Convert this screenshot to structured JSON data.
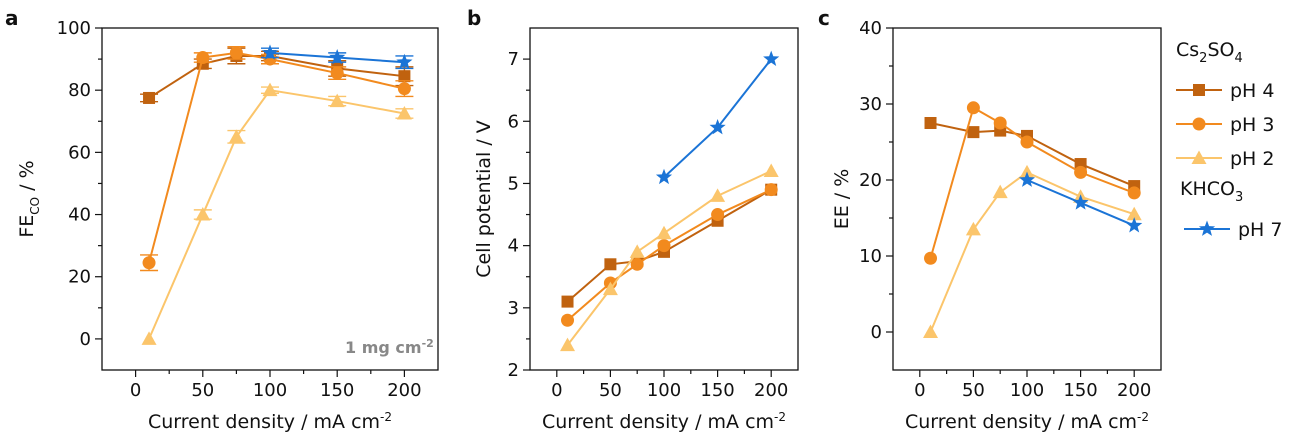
{
  "colors": {
    "pH 4": "#c0620f",
    "pH 3": "#f28a1e",
    "pH 2": "#fbc56b",
    "pH 7": "#1b74d6",
    "axis": "#111111"
  },
  "chart_data": [
    {
      "panel": "a",
      "type": "line",
      "xlabel": "Current density / mA cm",
      "xlabel_sup": "-2",
      "ylabel": "FE",
      "ylabel_sub": "CO",
      "ylabel_suffix": " / %",
      "xlim": [
        -25,
        225
      ],
      "ylim": [
        -10,
        100
      ],
      "xticks": [
        0,
        50,
        100,
        150,
        200
      ],
      "yticks": [
        0,
        20,
        40,
        60,
        80,
        100
      ],
      "annotation": "1 mg cm",
      "annotation_sup": "-2",
      "series": [
        {
          "key": "pH 4",
          "marker": "square",
          "x": [
            10,
            50,
            75,
            100,
            150,
            200
          ],
          "y": [
            77.5,
            88.5,
            91,
            91,
            87,
            84.5
          ],
          "err": [
            1.2,
            1.5,
            2.5,
            1.5,
            2.5,
            3
          ]
        },
        {
          "key": "pH 3",
          "marker": "circle",
          "x": [
            10,
            50,
            75,
            100,
            150,
            200
          ],
          "y": [
            24.5,
            90.5,
            92,
            90,
            85.5,
            80.5
          ],
          "err": [
            2.5,
            1.5,
            2,
            1.5,
            2,
            2.5
          ]
        },
        {
          "key": "pH 2",
          "marker": "triangle",
          "x": [
            10,
            50,
            75,
            100,
            150,
            200
          ],
          "y": [
            0,
            40,
            65,
            80,
            76.5,
            72.5
          ],
          "err": [
            0,
            1.5,
            2,
            1,
            1.5,
            1.5
          ]
        },
        {
          "key": "pH 7",
          "marker": "star",
          "x": [
            100,
            150,
            200
          ],
          "y": [
            92,
            90.5,
            89
          ],
          "err": [
            1.5,
            1.5,
            2
          ]
        }
      ]
    },
    {
      "panel": "b",
      "type": "line",
      "xlabel": "Current density / mA cm",
      "xlabel_sup": "-2",
      "ylabel": "Cell potential / V",
      "xlim": [
        -25,
        225
      ],
      "ylim": [
        2,
        7.5
      ],
      "xticks": [
        0,
        50,
        100,
        150,
        200
      ],
      "yticks": [
        2,
        3,
        4,
        5,
        6,
        7
      ],
      "series": [
        {
          "key": "pH 4",
          "marker": "square",
          "x": [
            10,
            50,
            75,
            100,
            150,
            200
          ],
          "y": [
            3.1,
            3.7,
            3.75,
            3.9,
            4.4,
            4.9
          ]
        },
        {
          "key": "pH 3",
          "marker": "circle",
          "x": [
            10,
            50,
            75,
            100,
            150,
            200
          ],
          "y": [
            2.8,
            3.4,
            3.7,
            4.0,
            4.5,
            4.9
          ]
        },
        {
          "key": "pH 2",
          "marker": "triangle",
          "x": [
            10,
            50,
            75,
            100,
            150,
            200
          ],
          "y": [
            2.4,
            3.3,
            3.9,
            4.2,
            4.8,
            5.2
          ]
        },
        {
          "key": "pH 7",
          "marker": "star",
          "x": [
            100,
            150,
            200
          ],
          "y": [
            5.1,
            5.9,
            7.0
          ]
        }
      ]
    },
    {
      "panel": "c",
      "type": "line",
      "xlabel": "Current density / mA cm",
      "xlabel_sup": "-2",
      "ylabel": "EE / %",
      "xlim": [
        -25,
        225
      ],
      "ylim": [
        -5,
        40
      ],
      "xticks": [
        0,
        50,
        100,
        150,
        200
      ],
      "yticks": [
        0,
        10,
        20,
        30,
        40
      ],
      "series": [
        {
          "key": "pH 4",
          "marker": "square",
          "x": [
            10,
            50,
            75,
            100,
            150,
            200
          ],
          "y": [
            27.5,
            26.3,
            26.5,
            25.8,
            22.1,
            19.2
          ]
        },
        {
          "key": "pH 3",
          "marker": "circle",
          "x": [
            10,
            50,
            75,
            100,
            150,
            200
          ],
          "y": [
            9.7,
            29.5,
            27.5,
            25.0,
            21.0,
            18.3
          ]
        },
        {
          "key": "pH 2",
          "marker": "triangle",
          "x": [
            10,
            50,
            75,
            100,
            150,
            200
          ],
          "y": [
            0,
            13.5,
            18.4,
            21.0,
            17.8,
            15.5
          ]
        },
        {
          "key": "pH 7",
          "marker": "star",
          "x": [
            100,
            150,
            200
          ],
          "y": [
            20.0,
            17.0,
            14.0
          ]
        }
      ]
    }
  ],
  "legend": {
    "group1_title": "Cs",
    "group1_title_sub1": "2",
    "group1_title_mid": "SO",
    "group1_title_sub2": "4",
    "group2_title": "KHCO",
    "group2_title_sub": "3",
    "entries": [
      {
        "key": "pH 4",
        "label": "pH 4",
        "marker": "square"
      },
      {
        "key": "pH 3",
        "label": "pH 3",
        "marker": "circle"
      },
      {
        "key": "pH 2",
        "label": "pH 2",
        "marker": "triangle"
      },
      {
        "key": "pH 7",
        "label": "pH 7",
        "marker": "star"
      }
    ],
    "placement": "right"
  }
}
